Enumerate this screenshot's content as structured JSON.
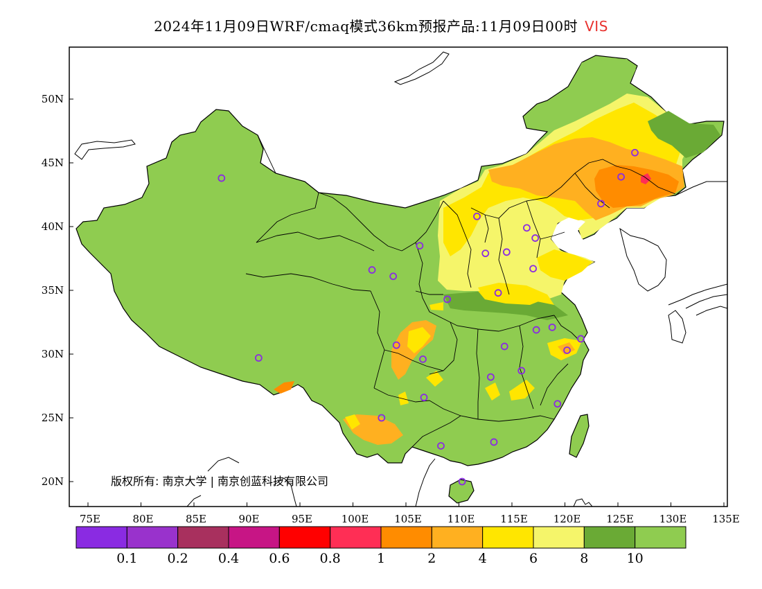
{
  "title": {
    "main": "2024年11月09日WRF/cmaq模式36km预报产品:11月09日00时",
    "variable": "VIS"
  },
  "copyright": "版权所有: 南京大学 | 南京创蓝科技有限公司",
  "axes": {
    "lat_labels": [
      "50N",
      "45N",
      "40N",
      "35N",
      "30N",
      "25N",
      "20N"
    ],
    "lat_values": [
      50,
      45,
      40,
      35,
      30,
      25,
      20
    ],
    "lon_labels": [
      "75E",
      "80E",
      "85E",
      "90E",
      "95E",
      "100E",
      "105E",
      "110E",
      "115E",
      "120E",
      "125E",
      "130E",
      "135E"
    ],
    "lon_values": [
      75,
      80,
      85,
      90,
      95,
      100,
      105,
      110,
      115,
      120,
      125,
      130,
      135
    ]
  },
  "colorbar": {
    "colors": [
      "#8a2be2",
      "#9932cc",
      "#a8305e",
      "#c71585",
      "#ff0000",
      "#ff2e55",
      "#ff8c00",
      "#ffb020",
      "#ffe600",
      "#f5f56a",
      "#6aaa35",
      "#8fcc50"
    ],
    "labels": [
      "0.1",
      "0.2",
      "0.4",
      "0.6",
      "0.8",
      "1",
      "2",
      "4",
      "6",
      "8",
      "10"
    ]
  },
  "colors": {
    "land": "#8fcc50",
    "dark_green": "#6aaa35",
    "light_yellow": "#f5f56a",
    "yellow": "#ffe600",
    "orange": "#ffb020",
    "dark_orange": "#ff8c00",
    "red": "#ff2e55",
    "station": "#8a2be2"
  },
  "stations": [
    {
      "lon": 87.6,
      "lat": 43.8
    },
    {
      "lon": 91.1,
      "lat": 29.7
    },
    {
      "lon": 101.8,
      "lat": 36.6
    },
    {
      "lon": 103.8,
      "lat": 36.1
    },
    {
      "lon": 106.3,
      "lat": 38.5
    },
    {
      "lon": 104.1,
      "lat": 30.7
    },
    {
      "lon": 106.6,
      "lat": 29.6
    },
    {
      "lon": 102.7,
      "lat": 25.0
    },
    {
      "lon": 106.7,
      "lat": 26.6
    },
    {
      "lon": 108.3,
      "lat": 22.8
    },
    {
      "lon": 110.3,
      "lat": 20.0
    },
    {
      "lon": 113.3,
      "lat": 23.1
    },
    {
      "lon": 113.0,
      "lat": 28.2
    },
    {
      "lon": 114.3,
      "lat": 30.6
    },
    {
      "lon": 115.9,
      "lat": 28.7
    },
    {
      "lon": 119.3,
      "lat": 26.1
    },
    {
      "lon": 120.2,
      "lat": 30.3
    },
    {
      "lon": 118.8,
      "lat": 32.1
    },
    {
      "lon": 117.3,
      "lat": 31.9
    },
    {
      "lon": 121.5,
      "lat": 31.2
    },
    {
      "lon": 113.7,
      "lat": 34.8
    },
    {
      "lon": 108.9,
      "lat": 34.3
    },
    {
      "lon": 112.5,
      "lat": 37.9
    },
    {
      "lon": 114.5,
      "lat": 38.0
    },
    {
      "lon": 117.0,
      "lat": 36.7
    },
    {
      "lon": 117.2,
      "lat": 39.1
    },
    {
      "lon": 116.4,
      "lat": 39.9
    },
    {
      "lon": 111.7,
      "lat": 40.8
    },
    {
      "lon": 123.4,
      "lat": 41.8
    },
    {
      "lon": 125.3,
      "lat": 43.9
    },
    {
      "lon": 126.6,
      "lat": 45.8
    }
  ]
}
